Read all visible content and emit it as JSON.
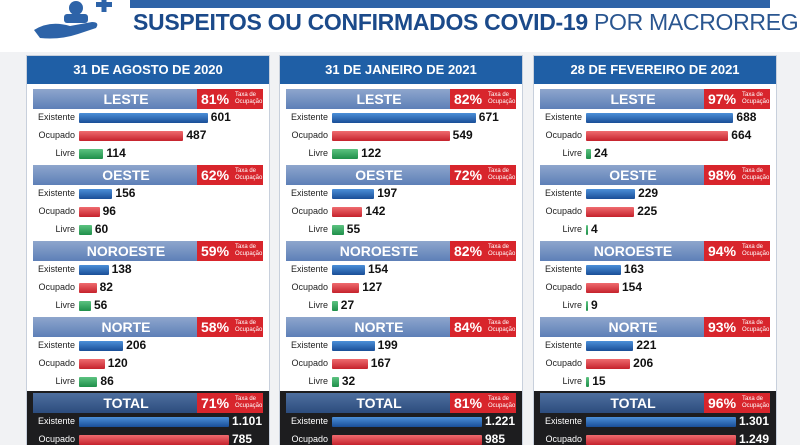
{
  "header": {
    "title_bold": "SUSPEITOS OU CONFIRMADOS COVID-19",
    "title_light": "POR MACRORREGIÃO"
  },
  "labels": {
    "existente": "Existente",
    "ocupado": "Ocupado",
    "livre": "Livre",
    "taxa": "Taxa de Ocupação"
  },
  "colors": {
    "existente": "#1a4e97",
    "ocupado": "#c5222c",
    "livre": "#1f8f4a",
    "rate_badge": "#d8252c",
    "column_header": "#1f5fa6"
  },
  "chart_data": {
    "type": "bar",
    "orientation": "horizontal",
    "xlim": [
      0,
      700
    ],
    "columns": [
      {
        "date": "31 DE AGOSTO DE 2020",
        "regions": [
          {
            "name": "LESTE",
            "rate": "81%",
            "existente": "601",
            "ocupado": "487",
            "livre": "114"
          },
          {
            "name": "OESTE",
            "rate": "62%",
            "existente": "156",
            "ocupado": "96",
            "livre": "60"
          },
          {
            "name": "NOROESTE",
            "rate": "59%",
            "existente": "138",
            "ocupado": "82",
            "livre": "56"
          },
          {
            "name": "NORTE",
            "rate": "58%",
            "existente": "206",
            "ocupado": "120",
            "livre": "86"
          },
          {
            "name": "TOTAL",
            "rate": "71%",
            "existente": "1.101",
            "ocupado": "785"
          }
        ]
      },
      {
        "date": "31 DE JANEIRO DE 2021",
        "regions": [
          {
            "name": "LESTE",
            "rate": "82%",
            "existente": "671",
            "ocupado": "549",
            "livre": "122"
          },
          {
            "name": "OESTE",
            "rate": "72%",
            "existente": "197",
            "ocupado": "142",
            "livre": "55"
          },
          {
            "name": "NOROESTE",
            "rate": "82%",
            "existente": "154",
            "ocupado": "127",
            "livre": "27"
          },
          {
            "name": "NORTE",
            "rate": "84%",
            "existente": "199",
            "ocupado": "167",
            "livre": "32"
          },
          {
            "name": "TOTAL",
            "rate": "81%",
            "existente": "1.221",
            "ocupado": "985"
          }
        ]
      },
      {
        "date": "28 DE FEVEREIRO DE 2021",
        "regions": [
          {
            "name": "LESTE",
            "rate": "97%",
            "existente": "688",
            "ocupado": "664",
            "livre": "24"
          },
          {
            "name": "OESTE",
            "rate": "98%",
            "existente": "229",
            "ocupado": "225",
            "livre": "4"
          },
          {
            "name": "NOROESTE",
            "rate": "94%",
            "existente": "163",
            "ocupado": "154",
            "livre": "9"
          },
          {
            "name": "NORTE",
            "rate": "93%",
            "existente": "221",
            "ocupado": "206",
            "livre": "15"
          },
          {
            "name": "TOTAL",
            "rate": "96%",
            "existente": "1.301",
            "ocupado": "1.249"
          }
        ]
      }
    ]
  }
}
